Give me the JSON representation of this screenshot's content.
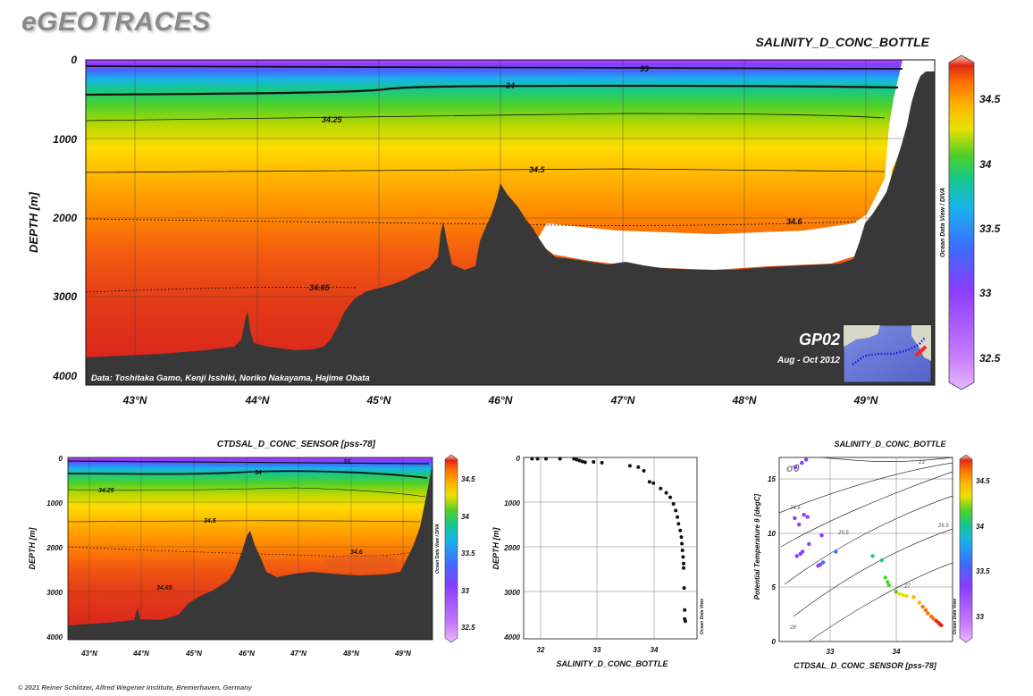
{
  "brand": "eGEOTRACES",
  "footer": "© 2021 Reiner Schlitzer, Alfred Wegener Institute, Bremerhaven, Germany",
  "odv_label": "Ocean Data View / DIVA",
  "odv_label_short": "Ocean Data View",
  "chart_data": [
    {
      "type": "heatmap",
      "id": "main-section",
      "title": "SALINITY_D_CONC_BOTTLE",
      "ylabel": "DEPTH [m]",
      "xlabel": "",
      "x_ticks": [
        "43°N",
        "44°N",
        "45°N",
        "46°N",
        "47°N",
        "48°N",
        "49°N"
      ],
      "x_tick_values": [
        43,
        44,
        45,
        46,
        47,
        48,
        49
      ],
      "y_ticks": [
        "0",
        "1000",
        "2000",
        "3000",
        "4000"
      ],
      "y_tick_values": [
        0,
        1000,
        2000,
        3000,
        4000
      ],
      "xlim": [
        42.6,
        49.55
      ],
      "ylim": [
        0,
        4100
      ],
      "colorbar_ticks": [
        "34.5",
        "34",
        "33.5",
        "33",
        "32.5"
      ],
      "colorbar_values": [
        34.5,
        34.0,
        33.5,
        33.0,
        32.5
      ],
      "colorbar_range": [
        32.25,
        34.8
      ],
      "contours": [
        {
          "label": "33",
          "value": 33.0
        },
        {
          "label": "34",
          "value": 34.0
        },
        {
          "label": "34.25",
          "value": 34.25
        },
        {
          "label": "34.5",
          "value": 34.5
        },
        {
          "label": "34.6",
          "value": 34.6
        },
        {
          "label": "34.65",
          "value": 34.65
        }
      ],
      "credits": "Data: Toshitaka Gamo, Kenji Isshiki, Noriko Nakayama, Hajime Obata",
      "cruise": "GP02",
      "cruise_dates": "Aug - Oct 2012"
    },
    {
      "type": "heatmap",
      "id": "ctd-section",
      "title": "CTDSAL_D_CONC_SENSOR [pss-78]",
      "ylabel": "DEPTH [m]",
      "x_ticks": [
        "43°N",
        "44°N",
        "45°N",
        "46°N",
        "47°N",
        "48°N",
        "49°N"
      ],
      "x_tick_values": [
        43,
        44,
        45,
        46,
        47,
        48,
        49
      ],
      "y_ticks": [
        "0",
        "1000",
        "2000",
        "3000",
        "4000"
      ],
      "y_tick_values": [
        0,
        1000,
        2000,
        3000,
        4000
      ],
      "xlim": [
        42.6,
        49.55
      ],
      "ylim": [
        0,
        4100
      ],
      "colorbar_ticks": [
        "34.5",
        "34",
        "33.5",
        "33",
        "32.5"
      ],
      "colorbar_values": [
        34.5,
        34.0,
        33.5,
        33.0,
        32.5
      ],
      "colorbar_range": [
        32.25,
        34.8
      ],
      "contour_labels": [
        "33",
        "34",
        "34.25",
        "34.5",
        "34.6",
        "34.65"
      ]
    },
    {
      "type": "scatter",
      "id": "profile",
      "xlabel": "SALINITY_D_CONC_BOTTLE",
      "ylabel": "DEPTH [m]",
      "x_ticks": [
        "32",
        "33",
        "34"
      ],
      "x_tick_values": [
        32,
        33,
        34
      ],
      "y_ticks": [
        "0",
        "1000",
        "2000",
        "3000",
        "4000"
      ],
      "y_tick_values": [
        0,
        1000,
        2000,
        3000,
        4000
      ],
      "xlim": [
        31.8,
        34.9
      ],
      "ylim": [
        0,
        4100
      ],
      "points": [
        [
          31.95,
          5
        ],
        [
          32.05,
          8
        ],
        [
          32.2,
          10
        ],
        [
          32.45,
          15
        ],
        [
          32.7,
          25
        ],
        [
          32.75,
          50
        ],
        [
          32.8,
          70
        ],
        [
          32.85,
          90
        ],
        [
          32.9,
          110
        ],
        [
          33.05,
          100
        ],
        [
          33.2,
          120
        ],
        [
          33.7,
          190
        ],
        [
          33.85,
          220
        ],
        [
          33.95,
          300
        ],
        [
          34.05,
          550
        ],
        [
          34.12,
          580
        ],
        [
          34.25,
          700
        ],
        [
          34.35,
          800
        ],
        [
          34.42,
          900
        ],
        [
          34.48,
          1050
        ],
        [
          34.52,
          1200
        ],
        [
          34.55,
          1350
        ],
        [
          34.57,
          1500
        ],
        [
          34.6,
          1650
        ],
        [
          34.62,
          1800
        ],
        [
          34.63,
          1950
        ],
        [
          34.64,
          2100
        ],
        [
          34.65,
          2250
        ],
        [
          34.66,
          2400
        ],
        [
          34.66,
          2500
        ],
        [
          34.67,
          2950
        ],
        [
          34.68,
          3450
        ],
        [
          34.68,
          3650
        ],
        [
          34.69,
          3700
        ]
      ]
    },
    {
      "type": "scatter",
      "id": "ts-diagram",
      "title": "SALINITY_D_CONC_BOTTLE",
      "xlabel": "CTDSAL_D_CONC_SENSOR [pss-78]",
      "ylabel": "Potential Temperature θ [degC]",
      "x_ticks": [
        "33",
        "34"
      ],
      "x_tick_values": [
        33,
        34
      ],
      "y_ticks": [
        "0",
        "5",
        "10",
        "15"
      ],
      "y_tick_values": [
        0,
        5,
        10,
        15
      ],
      "xlim": [
        32.4,
        34.85
      ],
      "ylim": [
        0,
        17
      ],
      "isopycnal_symbol": "σ0",
      "isopycnal_labels": [
        "23",
        "24.5",
        "25.5",
        "26.5",
        "27",
        "28"
      ],
      "isopycnal_values": [
        23,
        24.5,
        25.5,
        26.5,
        27,
        28
      ],
      "colorbar_ticks": [
        "34.5",
        "34",
        "33.5",
        "33"
      ],
      "colorbar_values": [
        34.5,
        34.0,
        33.5,
        33.0
      ],
      "colorbar_range": [
        32.25,
        34.8
      ],
      "points": [
        [
          32.63,
          16.1
        ],
        [
          32.72,
          16.5
        ],
        [
          32.78,
          16.8
        ],
        [
          32.62,
          11.4
        ],
        [
          32.75,
          11.7
        ],
        [
          32.8,
          11.5
        ],
        [
          32.68,
          10.8
        ],
        [
          32.82,
          9.0
        ],
        [
          32.7,
          8.1
        ],
        [
          32.65,
          7.9
        ],
        [
          32.73,
          8.3
        ],
        [
          32.98,
          7.1
        ],
        [
          33.02,
          7.3
        ],
        [
          32.95,
          7.0
        ],
        [
          33.0,
          9.8
        ],
        [
          33.2,
          8.3
        ],
        [
          33.72,
          7.9
        ],
        [
          33.85,
          7.5
        ],
        [
          33.9,
          5.9
        ],
        [
          33.93,
          5.5
        ],
        [
          33.95,
          5.2
        ],
        [
          34.05,
          4.6
        ],
        [
          34.1,
          4.4
        ],
        [
          34.15,
          4.3
        ],
        [
          34.2,
          4.2
        ],
        [
          34.3,
          4.1
        ],
        [
          34.38,
          3.6
        ],
        [
          34.43,
          3.2
        ],
        [
          34.47,
          2.9
        ],
        [
          34.5,
          2.6
        ],
        [
          34.55,
          2.3
        ],
        [
          34.58,
          2.1
        ],
        [
          34.62,
          1.9
        ],
        [
          34.65,
          1.75
        ],
        [
          34.67,
          1.6
        ],
        [
          34.69,
          1.5
        ]
      ]
    }
  ]
}
